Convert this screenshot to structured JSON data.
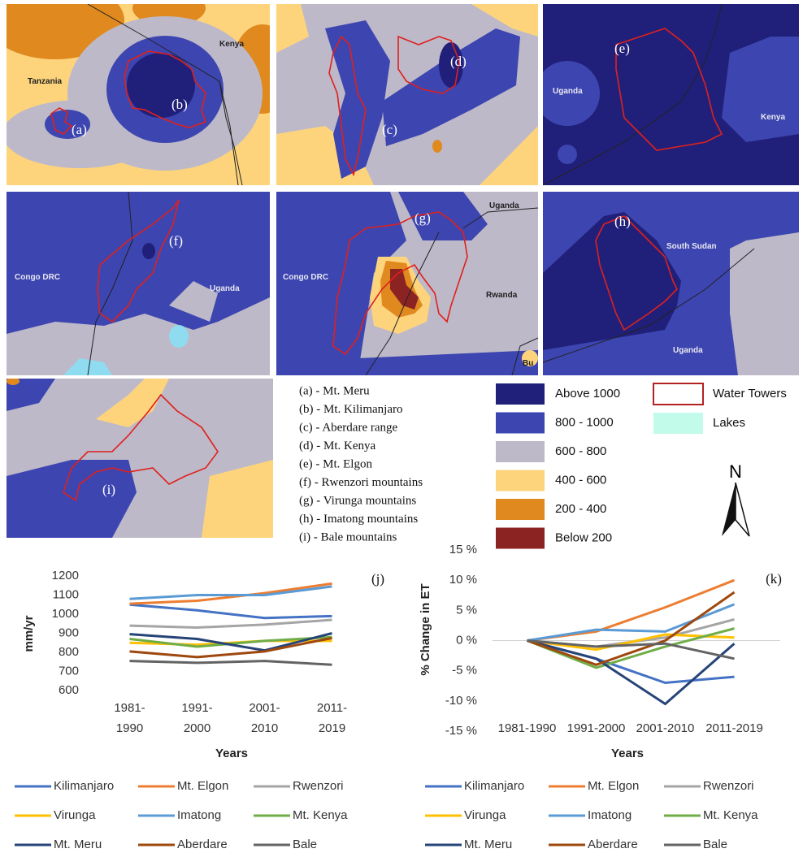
{
  "maps": [
    {
      "labels": [
        "Tanzania",
        "Kenya",
        "(a)",
        "(b)"
      ]
    },
    {
      "labels": [
        "(d)",
        "(c)"
      ]
    },
    {
      "labels": [
        "(e)",
        "Uganda",
        "Kenya"
      ]
    },
    {
      "labels": [
        "(f)",
        "Congo DRC",
        "Uganda"
      ]
    },
    {
      "labels": [
        "(g)",
        "Uganda",
        "Congo DRC",
        "Rwanda",
        "Bu"
      ]
    },
    {
      "labels": [
        "(h)",
        "South Sudan",
        "Uganda"
      ]
    },
    {
      "labels": [
        "(i)"
      ]
    }
  ],
  "key": [
    "(a) - Mt. Meru",
    "(b) - Mt. Kilimanjaro",
    "(c) - Aberdare range",
    "(d) - Mt. Kenya",
    "(e) - Mt. Elgon",
    "(f) - Rwenzori mountains",
    "(g) - Virunga mountains",
    "(h) - Imatong mountains",
    "(i) - Bale mountains"
  ],
  "legend": {
    "classes": [
      {
        "label": "Above 1000",
        "color": "#20207a"
      },
      {
        "label": "800 - 1000",
        "color": "#3d45b0"
      },
      {
        "label": "600 - 800",
        "color": "#bdb9c9"
      },
      {
        "label": "400 - 600",
        "color": "#fdd47c"
      },
      {
        "label": "200 - 400",
        "color": "#e0891f"
      },
      {
        "label": "Below 200",
        "color": "#8b2323"
      }
    ],
    "overlays": [
      {
        "label": "Water Towers",
        "color": "#b22222"
      },
      {
        "label": "Lakes",
        "color": "#c3fbeb"
      }
    ],
    "north": "N"
  },
  "chart_data": [
    {
      "type": "line",
      "panel": "(j)",
      "y_label": "mm/yr",
      "x_label": "Years",
      "categories": [
        "1981-1990",
        "1991-2000",
        "2001-2010",
        "2011-2019"
      ],
      "ylim": [
        600,
        1200
      ],
      "yticks": [
        600,
        700,
        800,
        900,
        1000,
        1100,
        1200
      ],
      "grid": false,
      "series": [
        {
          "name": "Kilimanjaro",
          "color": "#4472c4",
          "values": [
            1050,
            1020,
            980,
            990
          ]
        },
        {
          "name": "Mt. Elgon",
          "color": "#ed7d31",
          "values": [
            1055,
            1070,
            1110,
            1160
          ]
        },
        {
          "name": "Rwenzori",
          "color": "#a5a5a5",
          "values": [
            940,
            930,
            945,
            970
          ]
        },
        {
          "name": "Virunga",
          "color": "#ffc000",
          "values": [
            850,
            840,
            860,
            860
          ]
        },
        {
          "name": "Imatong",
          "color": "#5b9bd5",
          "values": [
            1080,
            1100,
            1100,
            1145
          ]
        },
        {
          "name": "Mt. Kenya",
          "color": "#70ad47",
          "values": [
            870,
            830,
            860,
            880
          ]
        },
        {
          "name": "Mt. Meru",
          "color": "#264478",
          "values": [
            895,
            870,
            810,
            900
          ]
        },
        {
          "name": "Aberdare",
          "color": "#9e480e",
          "values": [
            805,
            775,
            805,
            875
          ]
        },
        {
          "name": "Bale",
          "color": "#636363",
          "values": [
            755,
            745,
            755,
            735
          ]
        }
      ]
    },
    {
      "type": "line",
      "panel": "(k)",
      "y_label": "% Change in ET",
      "x_label": "Years",
      "categories": [
        "1981-1990",
        "1991-2000",
        "2001-2010",
        "2011-2019"
      ],
      "ylim": [
        -15,
        15
      ],
      "yticks": [
        {
          "value": -15,
          "label": "-15 %"
        },
        {
          "value": -10,
          "label": "-10 %"
        },
        {
          "value": -5,
          "label": "-5 %"
        },
        {
          "value": 0,
          "label": "0 %"
        },
        {
          "value": 5,
          "label": "5 %"
        },
        {
          "value": 10,
          "label": "10 %"
        },
        {
          "value": 15,
          "label": "15 %"
        }
      ],
      "grid": false,
      "series": [
        {
          "name": "Kilimanjaro",
          "color": "#4472c4",
          "values": [
            0,
            -3,
            -7,
            -6
          ]
        },
        {
          "name": "Mt. Elgon",
          "color": "#ed7d31",
          "values": [
            0,
            1.5,
            5.5,
            10
          ]
        },
        {
          "name": "Rwenzori",
          "color": "#a5a5a5",
          "values": [
            0,
            -1,
            0.5,
            3.5
          ]
        },
        {
          "name": "Virunga",
          "color": "#ffc000",
          "values": [
            0,
            -1.5,
            1,
            0.5
          ]
        },
        {
          "name": "Imatong",
          "color": "#5b9bd5",
          "values": [
            0,
            1.8,
            1.5,
            6
          ]
        },
        {
          "name": "Mt. Kenya",
          "color": "#70ad47",
          "values": [
            0,
            -4.5,
            -1,
            2
          ]
        },
        {
          "name": "Mt. Meru",
          "color": "#264478",
          "values": [
            0,
            -3,
            -10.5,
            -0.5
          ]
        },
        {
          "name": "Aberdare",
          "color": "#9e480e",
          "values": [
            0,
            -4,
            0,
            8
          ]
        },
        {
          "name": "Bale",
          "color": "#636363",
          "values": [
            0,
            -1,
            -0.5,
            -3
          ]
        }
      ]
    }
  ]
}
